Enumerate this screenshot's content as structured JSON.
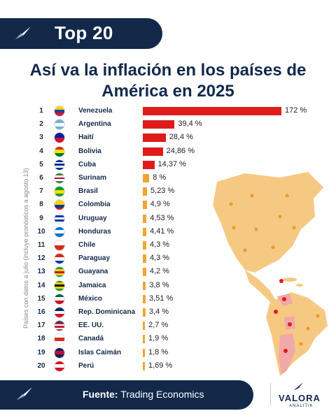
{
  "header": {
    "title": "Top 20"
  },
  "chart_data": {
    "type": "bar",
    "title": "Así va la inflación en los países de América en 2025",
    "ylabel": "Países con datos a julio (incluye pronósticos a agosto 13)",
    "categories": [
      "Venezuela",
      "Argentina",
      "Haití",
      "Bolivia",
      "Cuba",
      "Surinam",
      "Brasil",
      "Colombia",
      "Uruguay",
      "Honduras",
      "Chile",
      "Paraguay",
      "Guayana",
      "Jamaica",
      "México",
      "Rep. Dominicana",
      "EE. UU.",
      "Canadá",
      "Islas Caimán",
      "Perú"
    ],
    "ranks": [
      "1",
      "2",
      "3",
      "4",
      "5",
      "6",
      "7",
      "8",
      "9",
      "10",
      "11",
      "12",
      "13",
      "14",
      "15",
      "16",
      "17",
      "18",
      "19",
      "20"
    ],
    "values": [
      172,
      39.4,
      28.4,
      24.86,
      14.37,
      8,
      5.23,
      4.9,
      4.53,
      4.41,
      4.3,
      4.3,
      4.2,
      3.8,
      3.51,
      3.4,
      2.7,
      1.9,
      1.8,
      1.69
    ],
    "value_labels": [
      "172 %",
      "39,4 %",
      "28,4 %",
      "24,86 %",
      "14,37 %",
      "8 %",
      "5,23 %",
      "4,9 %",
      "4,53 %",
      "4,41 %",
      "4,3 %",
      "4,3 %",
      "4,2 %",
      "3,8 %",
      "3,51 %",
      "3,4 %",
      "2,7 %",
      "1,9 %",
      "1,8 %",
      "1,69 %"
    ],
    "bar_colors": {
      "high": "#e01b1b",
      "low": "#f2a431"
    },
    "flag_icons": [
      "venezuela-flag-icon",
      "argentina-flag-icon",
      "haiti-flag-icon",
      "bolivia-flag-icon",
      "cuba-flag-icon",
      "surinam-flag-icon",
      "brasil-flag-icon",
      "colombia-flag-icon",
      "uruguay-flag-icon",
      "honduras-flag-icon",
      "chile-flag-icon",
      "paraguay-flag-icon",
      "guayana-flag-icon",
      "jamaica-flag-icon",
      "mexico-flag-icon",
      "dominican-republic-flag-icon",
      "usa-flag-icon",
      "canada-flag-icon",
      "cayman-islands-flag-icon",
      "peru-flag-icon"
    ]
  },
  "footer": {
    "source_label": "Fuente:",
    "source_value": "Trading Economics"
  },
  "brand": {
    "name": "VALORA",
    "sub": "ANALITIK"
  },
  "colors": {
    "navy": "#12294a",
    "map_fill": "#f6c983",
    "map_red": "#f1a8a8"
  }
}
